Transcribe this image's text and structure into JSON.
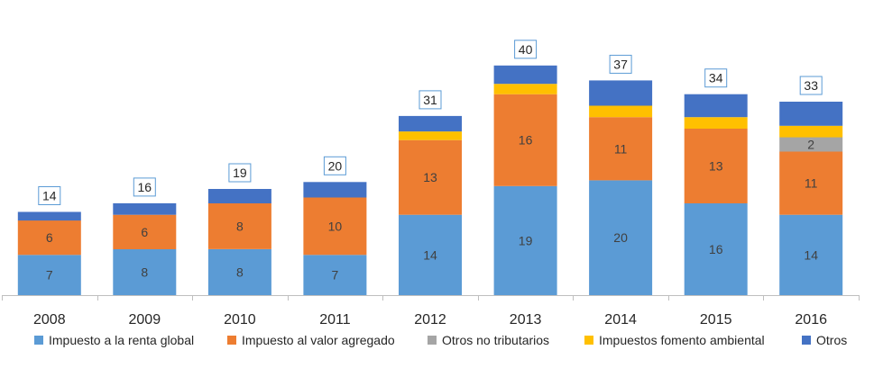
{
  "chart_data": {
    "type": "bar",
    "stacked": true,
    "categories": [
      "2008",
      "2009",
      "2010",
      "2011",
      "2012",
      "2013",
      "2014",
      "2015",
      "2016"
    ],
    "totals": [
      14,
      16,
      19,
      20,
      31,
      40,
      37,
      34,
      33
    ],
    "series": [
      {
        "name": "Impuesto a la renta global",
        "color": "#5B9BD5",
        "values": [
          7,
          8,
          8,
          7,
          14,
          19,
          20,
          16,
          14
        ],
        "labels": [
          "7",
          "8",
          "8",
          "7",
          "14",
          "19",
          "20",
          "16",
          "14"
        ]
      },
      {
        "name": "Impuesto al valor agregado",
        "color": "#ED7D31",
        "values": [
          6,
          6,
          8,
          10,
          13,
          16,
          11,
          13,
          11
        ],
        "labels": [
          "6",
          "6",
          "8",
          "10",
          "13",
          "16",
          "11",
          "13",
          "11"
        ]
      },
      {
        "name": "Otros no tributarios",
        "color": "#A5A5A5",
        "values": [
          0,
          0,
          0,
          0,
          0,
          0,
          0,
          0,
          2.5
        ],
        "labels": [
          "",
          "",
          "",
          "",
          "",
          "",
          "",
          "",
          "2"
        ]
      },
      {
        "name": "Impuestos fomento ambiental",
        "color": "#FFC000",
        "values": [
          0,
          0,
          0,
          0,
          1.5,
          1.8,
          2,
          2,
          2
        ],
        "labels": [
          "",
          "",
          "",
          "",
          "",
          "",
          "",
          "",
          ""
        ]
      },
      {
        "name": "Otros",
        "color": "#4472C4",
        "values": [
          1.5,
          2,
          2.5,
          2.7,
          2.7,
          3.2,
          4.4,
          4,
          4.2
        ],
        "labels": [
          "",
          "",
          "",
          "",
          "",
          "",
          "",
          "",
          ""
        ]
      }
    ],
    "title": "",
    "xlabel": "",
    "ylabel": "",
    "ylim": [
      0,
      42
    ],
    "grid": false,
    "legend": "bottom"
  }
}
